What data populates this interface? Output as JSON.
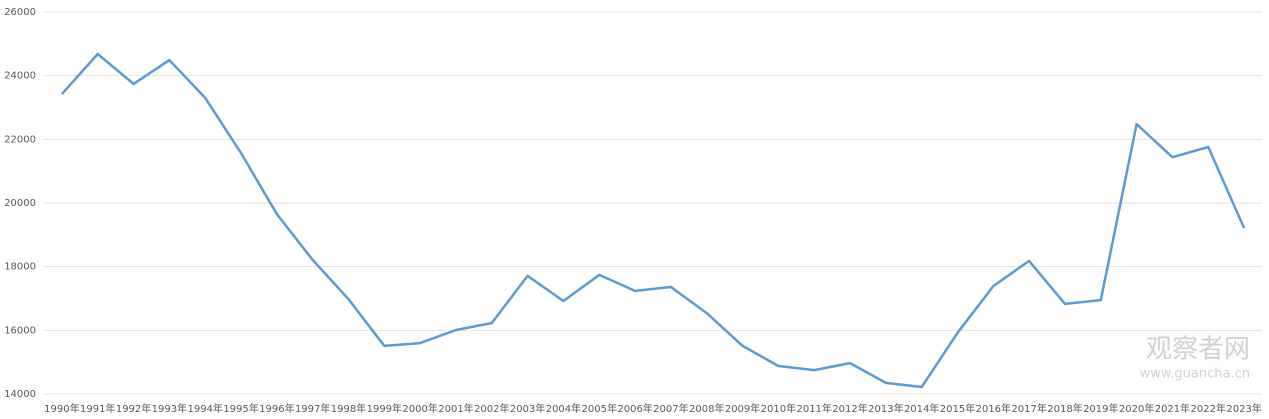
{
  "chart_data": {
    "type": "line",
    "categories": [
      "1990年",
      "1991年",
      "1992年",
      "1993年",
      "1994年",
      "1995年",
      "1996年",
      "1997年",
      "1998年",
      "1999年",
      "2000年",
      "2001年",
      "2002年",
      "2003年",
      "2004年",
      "2005年",
      "2006年",
      "2007年",
      "2008年",
      "2009年",
      "2010年",
      "2011年",
      "2012年",
      "2013年",
      "2014年",
      "2015年",
      "2016年",
      "2017年",
      "2018年",
      "2019年",
      "2020年",
      "2021年",
      "2022年",
      "2023年"
    ],
    "values": [
      23420,
      24680,
      23740,
      24490,
      23300,
      21570,
      19650,
      18210,
      16980,
      15510,
      15600,
      16010,
      16230,
      17710,
      16920,
      17740,
      17240,
      17360,
      16540,
      15510,
      14880,
      14750,
      14970,
      14350,
      14220,
      15920,
      17390,
      18180,
      16830,
      16950,
      22480,
      21440,
      21760,
      19210
    ],
    "color": "#5b9bd5",
    "ylim": [
      14000,
      26000
    ],
    "yticks": [
      14000,
      16000,
      18000,
      20000,
      22000,
      24000,
      26000
    ],
    "grid": true
  },
  "watermark": {
    "name": "观察者网",
    "url": "www.guancha.cn"
  }
}
